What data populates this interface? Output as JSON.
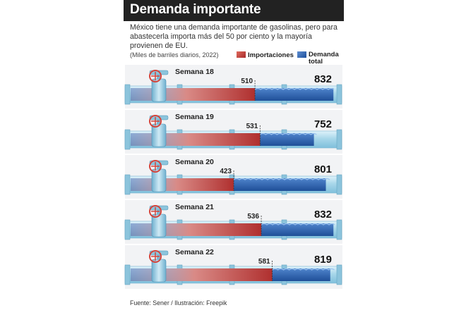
{
  "title": "Demanda importante",
  "subtitle": "México tiene una demanda importante de gasolinas, pero para abastecerla importa más del 50 por ciento y la mayoría provienen de EU.",
  "units_note": "(Miles de barriles diarios, 2022)",
  "legend": {
    "imports": "Importaciones",
    "demand": "Demanda total"
  },
  "sources": "Fuente: Sener / Ilustración: Freepik",
  "colors": {
    "imports": "#b83b38",
    "demand": "#2a5ea8",
    "pipe": "#a9d8ea"
  },
  "icons": [
    "valve-icon"
  ],
  "chart_data": {
    "type": "bar",
    "categories": [
      "Semana 18",
      "Semana 19",
      "Semana 20",
      "Semana 21",
      "Semana 22"
    ],
    "series": [
      {
        "name": "Importaciones",
        "values": [
          510,
          531,
          423,
          536,
          581
        ]
      },
      {
        "name": "Demanda total",
        "values": [
          832,
          752,
          801,
          832,
          819
        ]
      }
    ],
    "title": "Demanda importante",
    "xlabel": "",
    "ylabel": "",
    "grid": false,
    "legend_position": "top-right"
  }
}
